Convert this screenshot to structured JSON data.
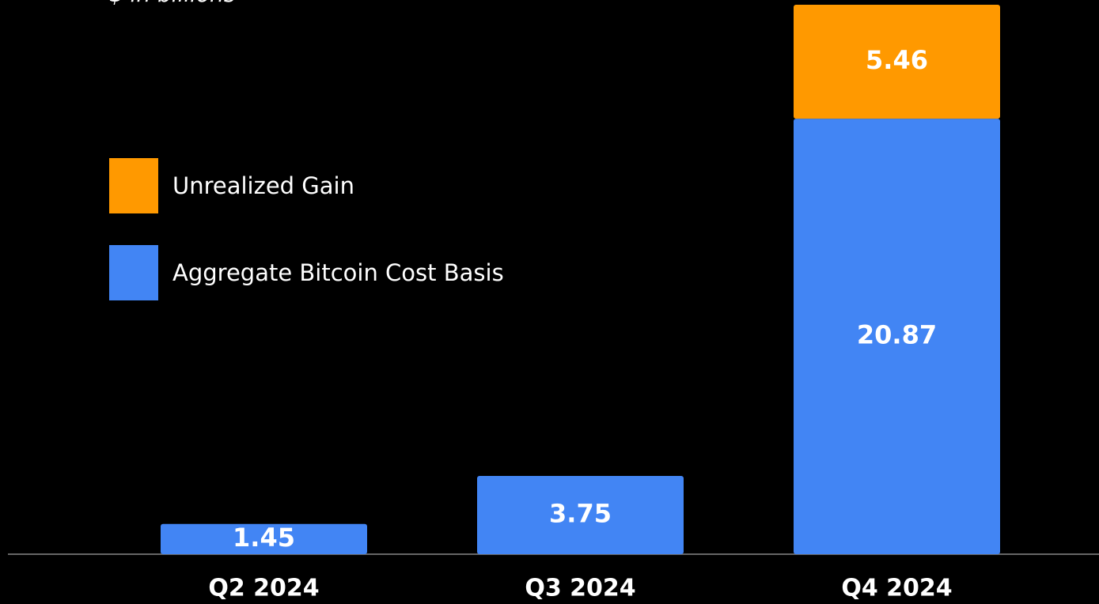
{
  "chart_data": {
    "type": "stacked_bar",
    "subtitle": "$ in billions",
    "categories": [
      "Q2 2024",
      "Q3 2024",
      "Q4 2024"
    ],
    "series": [
      {
        "name": "Aggregate Bitcoin Cost Basis",
        "color": "#4285f4",
        "values": [
          1.45,
          3.75,
          20.87
        ]
      },
      {
        "name": "Unrealized Gain",
        "color": "#ff9900",
        "values": [
          null,
          null,
          5.46
        ]
      }
    ]
  }
}
